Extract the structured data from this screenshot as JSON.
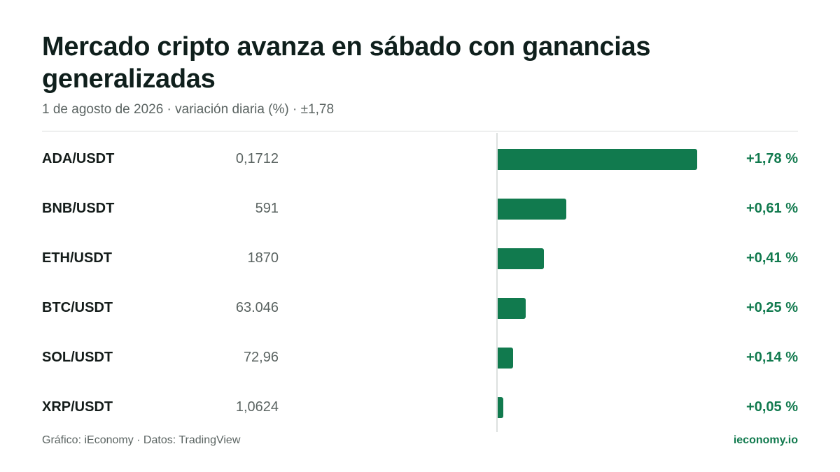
{
  "header": {
    "title": "Mercado cripto avanza en sábado con ganancias generalizadas",
    "subtitle": "1 de agosto de 2026 · variación diaria (%) · ±1,78"
  },
  "footer": {
    "source": "Gráfico: iEconomy · Datos: TradingView",
    "brand": "ieconomy.io"
  },
  "colors": {
    "bar": "#117a4e",
    "positive_text": "#117a4e",
    "title": "#0f1f1c"
  },
  "chart_data": {
    "type": "bar",
    "orientation": "horizontal",
    "categories": [
      "ADA/USDT",
      "BNB/USDT",
      "ETH/USDT",
      "BTC/USDT",
      "SOL/USDT",
      "XRP/USDT"
    ],
    "prices": [
      "0,1712",
      "591",
      "1870",
      "63.046",
      "72,96",
      "1,0624"
    ],
    "values": [
      1.78,
      0.61,
      0.41,
      0.25,
      0.14,
      0.05
    ],
    "value_labels": [
      "+1,78 %",
      "+0,61 %",
      "+0,41 %",
      "+0,25 %",
      "+0,14 %",
      "+0,05 %"
    ],
    "xlim": [
      0,
      1.78
    ],
    "unit": "%",
    "grid": false,
    "legend": "none"
  }
}
